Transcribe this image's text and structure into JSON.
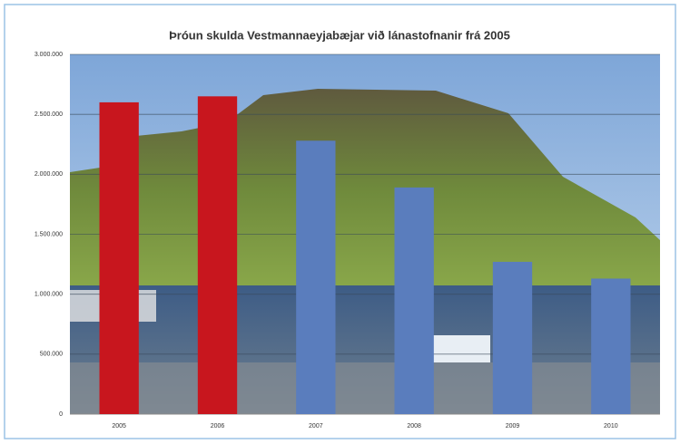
{
  "chart_data": {
    "type": "bar",
    "title": "Þróun skulda Vestmannaeyjabæjar við lánastofnanir frá 2005",
    "categories": [
      "2005",
      "2006",
      "2007",
      "2008",
      "2009",
      "2010"
    ],
    "values": [
      2600000,
      2650000,
      2280000,
      1890000,
      1270000,
      1130000
    ],
    "colors": [
      "#c8161e",
      "#c8161e",
      "#5a7dbd",
      "#5a7dbd",
      "#5a7dbd",
      "#5a7dbd"
    ],
    "ylim": [
      0,
      3000000
    ],
    "yticks": [
      0,
      {
        "value": 500000,
        "label": "500.000"
      },
      {
        "value": 1000000,
        "label": "1.000.000"
      },
      {
        "value": 1500000,
        "label": "1.500.000"
      },
      {
        "value": 2000000,
        "label": "2.000.000"
      },
      {
        "value": 2500000,
        "label": "2.500.000"
      },
      {
        "value": 3000000,
        "label": "3.000.000"
      }
    ],
    "grid": true
  }
}
